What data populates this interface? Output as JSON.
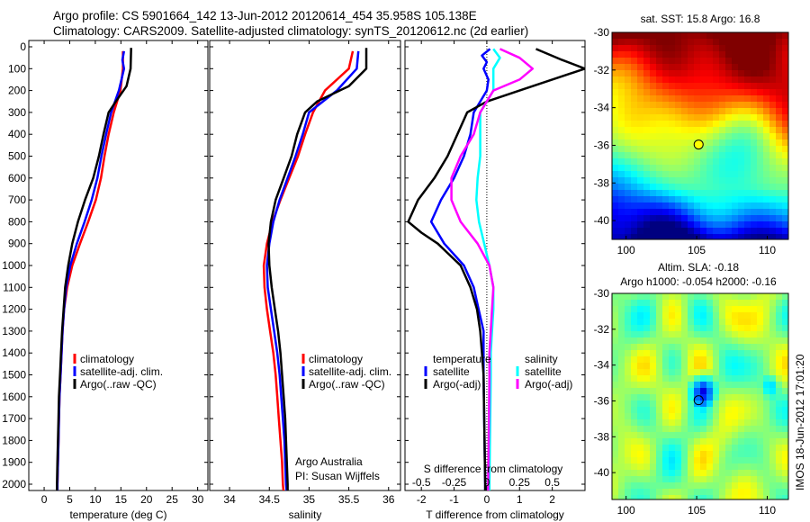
{
  "header": {
    "line1": "Argo profile: CS 5901664_142 13-Jun-2012 20120614_454 35.958S 105.138E",
    "line2": "Climatology: CARS2009. Satellite-adjusted climatology: synTS_20120612.nc (2d earlier)"
  },
  "stamp": "IMOS 18-Jun-2012 17:01:20",
  "colors": {
    "red": "#ff0000",
    "blue": "#0000ff",
    "black": "#000000",
    "cyan": "#00ffff",
    "magenta": "#ff00ff"
  },
  "chart_data": [
    {
      "type": "line",
      "xlabel": "temperature (deg C)",
      "ylabel": "",
      "xlim": [
        -3,
        32
      ],
      "ylim": [
        2050,
        0
      ],
      "xticks": [
        0,
        5,
        10,
        15,
        20,
        25,
        30
      ],
      "yticks": [
        0,
        100,
        200,
        300,
        400,
        500,
        600,
        700,
        800,
        900,
        1000,
        1100,
        1200,
        1300,
        1400,
        1500,
        1600,
        1700,
        1800,
        1900,
        2000
      ],
      "legend": {
        "placement": "lower-middle",
        "entries": [
          "climatology",
          "satellite-adj. clim.",
          "Argo(..raw -QC)"
        ]
      },
      "series": [
        {
          "name": "climatology",
          "color": "red",
          "depth": [
            20,
            100,
            200,
            300,
            400,
            500,
            600,
            700,
            800,
            900,
            1000,
            1100,
            1200,
            1300,
            1400,
            1500,
            1600,
            1700,
            1800,
            1900,
            2000,
            2040
          ],
          "values": [
            15.4,
            15.4,
            14.9,
            13.6,
            12.6,
            11.8,
            11.1,
            10.1,
            8.6,
            7.0,
            5.5,
            4.5,
            3.9,
            3.6,
            3.4,
            3.2,
            3.0,
            2.9,
            2.8,
            2.7,
            2.6,
            2.6
          ]
        },
        {
          "name": "satellite-adj. clim.",
          "color": "blue",
          "depth": [
            20,
            60,
            100,
            200,
            300,
            400,
            500,
            600,
            700,
            800,
            900,
            1000,
            1100,
            1200,
            1300,
            1400,
            1500,
            1600,
            1700,
            1800,
            1900,
            2000,
            2040
          ],
          "values": [
            15.6,
            15.3,
            15.6,
            14.6,
            13.1,
            12.1,
            11.2,
            10.4,
            9.3,
            7.9,
            6.4,
            5.1,
            4.3,
            3.9,
            3.6,
            3.4,
            3.2,
            3.0,
            2.9,
            2.8,
            2.7,
            2.6,
            2.6
          ]
        },
        {
          "name": "Argo(..raw -QC)",
          "color": "black",
          "depth": [
            5,
            100,
            180,
            250,
            300,
            400,
            500,
            600,
            700,
            800,
            900,
            1000,
            1100,
            1200,
            1300,
            1400,
            1500,
            1600,
            1700,
            1800,
            1900,
            2000,
            2040
          ],
          "values": [
            17.0,
            16.9,
            16.1,
            14.0,
            12.6,
            11.6,
            10.7,
            9.6,
            8.0,
            6.6,
            5.5,
            4.7,
            4.1,
            3.8,
            3.5,
            3.3,
            3.1,
            2.9,
            2.8,
            2.7,
            2.6,
            2.5,
            2.5
          ]
        }
      ]
    },
    {
      "type": "line",
      "xlabel": "salinity",
      "ylabel": "",
      "xlim": [
        33.75,
        36.15
      ],
      "ylim": [
        2050,
        0
      ],
      "xticks": [
        34,
        34.5,
        35,
        35.5,
        36
      ],
      "legend": {
        "placement": "lower-middle",
        "entries": [
          "climatology",
          "satellite-adj. clim.",
          "Argo(..raw -QC)"
        ]
      },
      "annotation": [
        "Argo Australia",
        "PI: Susan Wijffels"
      ],
      "series": [
        {
          "name": "climatology",
          "color": "red",
          "depth": [
            20,
            100,
            200,
            300,
            400,
            500,
            600,
            700,
            800,
            900,
            1000,
            1100,
            1200,
            1300,
            1400,
            1500,
            1600,
            1700,
            1800,
            1900,
            2000,
            2040
          ],
          "values": [
            35.55,
            35.5,
            35.2,
            35.05,
            34.95,
            34.86,
            34.75,
            34.64,
            34.54,
            34.47,
            34.43,
            34.44,
            34.47,
            34.51,
            34.55,
            34.58,
            34.6,
            34.62,
            34.64,
            34.66,
            34.67,
            34.68
          ]
        },
        {
          "name": "satellite-adj. clim.",
          "color": "blue",
          "depth": [
            20,
            100,
            200,
            300,
            400,
            500,
            600,
            700,
            800,
            900,
            1000,
            1100,
            1200,
            1300,
            1400,
            1500,
            1600,
            1700,
            1800,
            1900,
            2000,
            2040
          ],
          "values": [
            35.62,
            35.6,
            35.35,
            35.0,
            34.92,
            34.83,
            34.73,
            34.63,
            34.55,
            34.5,
            34.47,
            34.48,
            34.52,
            34.56,
            34.6,
            34.63,
            34.65,
            34.67,
            34.69,
            34.7,
            34.71,
            34.72
          ]
        },
        {
          "name": "Argo(..raw -QC)",
          "color": "black",
          "depth": [
            5,
            100,
            180,
            250,
            300,
            400,
            500,
            600,
            700,
            800,
            900,
            1000,
            1100,
            1200,
            1300,
            1400,
            1500,
            1600,
            1700,
            1800,
            1900,
            2000,
            2040
          ],
          "values": [
            35.72,
            35.72,
            35.5,
            35.1,
            34.95,
            34.85,
            34.78,
            34.68,
            34.58,
            34.52,
            34.49,
            34.5,
            34.53,
            34.57,
            34.61,
            34.64,
            34.66,
            34.68,
            34.7,
            34.71,
            34.72,
            34.73,
            34.73
          ]
        }
      ]
    },
    {
      "type": "line",
      "xlabel": "T difference from climatology",
      "top_label": "S difference from climatology",
      "xlim": [
        -2.5,
        3.0
      ],
      "x2lim": [
        -0.625,
        0.75
      ],
      "ylim": [
        2050,
        0
      ],
      "xticks": [
        -2,
        -1,
        0,
        1,
        2
      ],
      "x2ticks": [
        -0.5,
        -0.25,
        0,
        0.25,
        0.5
      ],
      "legend": {
        "placement": "lower-middle",
        "groups": [
          {
            "title": "temperature",
            "entries": [
              "satellite",
              "Argo(-adj)"
            ]
          },
          {
            "title": "salinity",
            "entries": [
              "satellite",
              "Argo(-adj)"
            ]
          }
        ]
      },
      "series": [
        {
          "name": "satellite",
          "group": "temperature",
          "color": "blue",
          "depth": [
            10,
            40,
            70,
            100,
            150,
            200,
            300,
            400,
            500,
            600,
            700,
            800,
            900,
            1000,
            1100,
            1200,
            1300,
            1500,
            2000,
            2040
          ],
          "values": [
            0.1,
            -0.15,
            0.0,
            -0.1,
            0.05,
            0.0,
            -0.4,
            -0.5,
            -0.7,
            -1.0,
            -1.4,
            -1.7,
            -1.3,
            -0.7,
            -0.4,
            -0.25,
            -0.1,
            -0.1,
            -0.05,
            -0.05
          ]
        },
        {
          "name": "Argo(-adj)",
          "group": "temperature",
          "color": "black",
          "depth": [
            10,
            60,
            100,
            200,
            250,
            300,
            400,
            500,
            600,
            700,
            800,
            850,
            900,
            1000,
            1100,
            1200,
            1300,
            1400,
            1500,
            2000,
            2040
          ],
          "values": [
            1.5,
            2.3,
            3.0,
            1.0,
            0.0,
            -0.6,
            -0.9,
            -1.2,
            -1.6,
            -2.1,
            -2.4,
            -2.0,
            -1.5,
            -0.8,
            -0.5,
            -0.3,
            -0.2,
            -0.15,
            -0.1,
            -0.05,
            -0.05
          ]
        },
        {
          "name": "satellite",
          "group": "salinity",
          "color": "cyan",
          "depth": [
            10,
            50,
            100,
            200,
            300,
            400,
            500,
            600,
            700,
            800,
            900,
            1000,
            1100,
            1200,
            1300,
            1400,
            1500,
            2000,
            2040
          ],
          "values": [
            0.05,
            0.1,
            0.05,
            0.05,
            -0.05,
            -0.05,
            -0.05,
            -0.07,
            -0.08,
            -0.06,
            -0.02,
            0.02,
            0.05,
            0.05,
            0.04,
            0.03,
            0.03,
            0.02,
            0.02
          ]
        },
        {
          "name": "Argo(-adj)",
          "group": "salinity",
          "color": "magenta",
          "depth": [
            10,
            50,
            100,
            150,
            200,
            300,
            400,
            500,
            600,
            700,
            800,
            900,
            1000,
            1100,
            1200,
            1300,
            1400,
            1500,
            2000,
            2040
          ],
          "values": [
            0.1,
            0.25,
            0.35,
            0.25,
            0.05,
            -0.05,
            -0.1,
            -0.2,
            -0.27,
            -0.27,
            -0.2,
            -0.07,
            0.02,
            0.05,
            0.04,
            0.03,
            0.02,
            0.02,
            0.01,
            0.01
          ]
        }
      ]
    },
    {
      "type": "heatmap",
      "title": "sat. SST: 15.8 Argo: 16.8",
      "xlim": [
        99,
        111.5
      ],
      "ylim": [
        -41,
        -30
      ],
      "xticks": [
        100,
        105,
        110
      ],
      "yticks": [
        -30,
        -32,
        -34,
        -36,
        -38,
        -40
      ],
      "marker": {
        "lon": 105.138,
        "lat": -35.958,
        "style": "filled-yellow"
      }
    },
    {
      "type": "heatmap",
      "title_lines": [
        "Altim. SLA: -0.18",
        "Argo h1000: -0.054 h2000: -0.16"
      ],
      "xlim": [
        99,
        111.5
      ],
      "ylim": [
        -41.5,
        -30
      ],
      "xticks": [
        100,
        105,
        110
      ],
      "yticks": [
        -30,
        -32,
        -34,
        -36,
        -38,
        -40
      ],
      "marker": {
        "lon": 105.138,
        "lat": -35.958,
        "style": "open-black"
      }
    }
  ]
}
